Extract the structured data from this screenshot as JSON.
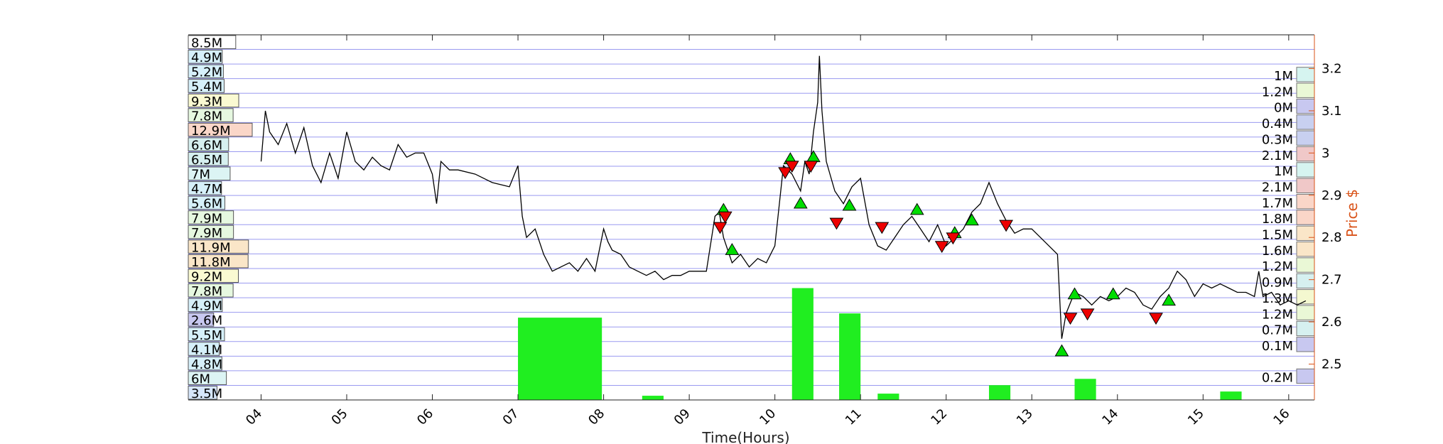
{
  "chart_data": {
    "type": "line",
    "xlabel": "Time(Hours)",
    "ylabel": "Price $",
    "xlim": [
      3.15,
      16.3
    ],
    "ylim": [
      2.415,
      3.28
    ],
    "x_ticks": [
      4,
      5,
      6,
      7,
      8,
      9,
      10,
      11,
      12,
      13,
      14,
      15,
      16
    ],
    "x_tick_labels": [
      "04",
      "05",
      "06",
      "07",
      "08",
      "09",
      "10",
      "11",
      "12",
      "13",
      "14",
      "15",
      "16"
    ],
    "y_ticks": [
      2.5,
      2.6,
      2.7,
      2.8,
      2.9,
      3.0,
      3.1,
      3.2
    ],
    "y_tick_labels": [
      "2.5",
      "2.6",
      "2.7",
      "2.8",
      "2.9",
      "3",
      "3.1",
      "3.2"
    ],
    "price_series": {
      "name": "",
      "x": [
        4.0,
        4.05,
        4.1,
        4.2,
        4.3,
        4.4,
        4.5,
        4.6,
        4.7,
        4.8,
        4.9,
        5.0,
        5.1,
        5.2,
        5.3,
        5.4,
        5.5,
        5.6,
        5.7,
        5.8,
        5.9,
        6.0,
        6.05,
        6.1,
        6.2,
        6.3,
        6.5,
        6.7,
        6.9,
        7.0,
        7.05,
        7.1,
        7.2,
        7.3,
        7.4,
        7.5,
        7.6,
        7.7,
        7.8,
        7.9,
        8.0,
        8.05,
        8.1,
        8.2,
        8.3,
        8.4,
        8.5,
        8.6,
        8.7,
        8.8,
        8.9,
        9.0,
        9.2,
        9.3,
        9.35,
        9.4,
        9.5,
        9.6,
        9.7,
        9.8,
        9.9,
        10.0,
        10.1,
        10.2,
        10.3,
        10.35,
        10.4,
        10.45,
        10.5,
        10.52,
        10.55,
        10.6,
        10.7,
        10.8,
        10.9,
        11.0,
        11.1,
        11.2,
        11.3,
        11.4,
        11.5,
        11.6,
        11.7,
        11.8,
        11.9,
        12.0,
        12.1,
        12.2,
        12.3,
        12.4,
        12.5,
        12.6,
        12.7,
        12.8,
        12.9,
        13.0,
        13.1,
        13.2,
        13.3,
        13.35,
        13.4,
        13.5,
        13.6,
        13.7,
        13.8,
        13.9,
        14.0,
        14.1,
        14.2,
        14.3,
        14.4,
        14.5,
        14.6,
        14.7,
        14.8,
        14.9,
        15.0,
        15.1,
        15.2,
        15.3,
        15.4,
        15.5,
        15.6,
        15.65,
        15.7,
        15.8,
        15.9,
        16.0,
        16.1,
        16.2
      ],
      "y": [
        2.98,
        3.1,
        3.05,
        3.02,
        3.07,
        3.0,
        3.06,
        2.97,
        2.93,
        3.0,
        2.94,
        3.05,
        2.98,
        2.96,
        2.99,
        2.97,
        2.96,
        3.02,
        2.99,
        3.0,
        3.0,
        2.95,
        2.88,
        2.98,
        2.96,
        2.96,
        2.95,
        2.93,
        2.92,
        2.97,
        2.85,
        2.8,
        2.82,
        2.76,
        2.72,
        2.73,
        2.74,
        2.72,
        2.75,
        2.72,
        2.82,
        2.79,
        2.77,
        2.76,
        2.73,
        2.72,
        2.71,
        2.72,
        2.7,
        2.71,
        2.71,
        2.72,
        2.72,
        2.85,
        2.86,
        2.8,
        2.74,
        2.76,
        2.73,
        2.75,
        2.74,
        2.78,
        2.97,
        2.95,
        2.91,
        2.98,
        2.95,
        3.05,
        3.12,
        3.23,
        3.1,
        2.98,
        2.91,
        2.88,
        2.92,
        2.94,
        2.83,
        2.78,
        2.77,
        2.8,
        2.83,
        2.85,
        2.82,
        2.79,
        2.83,
        2.78,
        2.8,
        2.82,
        2.86,
        2.88,
        2.93,
        2.88,
        2.84,
        2.81,
        2.82,
        2.82,
        2.8,
        2.78,
        2.76,
        2.56,
        2.62,
        2.67,
        2.66,
        2.64,
        2.66,
        2.65,
        2.66,
        2.68,
        2.67,
        2.64,
        2.63,
        2.66,
        2.68,
        2.72,
        2.7,
        2.66,
        2.69,
        2.68,
        2.69,
        2.68,
        2.67,
        2.67,
        2.66,
        2.72,
        2.66,
        2.67,
        2.64,
        2.65,
        2.64,
        2.65
      ]
    },
    "volume_bars": [
      {
        "from": 7.0,
        "to": 7.98,
        "top": 2.61,
        "color": "#20ee20"
      },
      {
        "from": 10.2,
        "to": 10.45,
        "top": 2.68,
        "color": "#20ee20"
      },
      {
        "from": 10.75,
        "to": 11.0,
        "top": 2.62,
        "color": "#20ee20"
      },
      {
        "from": 8.45,
        "to": 8.7,
        "top": 2.425,
        "color": "#20ee20"
      },
      {
        "from": 11.2,
        "to": 11.45,
        "top": 2.43,
        "color": "#20ee20"
      },
      {
        "from": 13.5,
        "to": 13.75,
        "top": 2.465,
        "color": "#20ee20"
      },
      {
        "from": 12.5,
        "to": 12.75,
        "top": 2.45,
        "color": "#20ee20"
      },
      {
        "from": 15.2,
        "to": 15.45,
        "top": 2.435,
        "color": "#20ee20"
      }
    ],
    "buy_markers": [
      {
        "x": 9.4,
        "y": 2.865
      },
      {
        "x": 9.5,
        "y": 2.77
      },
      {
        "x": 10.18,
        "y": 2.985
      },
      {
        "x": 10.3,
        "y": 2.88
      },
      {
        "x": 10.45,
        "y": 2.99
      },
      {
        "x": 10.87,
        "y": 2.875
      },
      {
        "x": 11.66,
        "y": 2.865
      },
      {
        "x": 12.1,
        "y": 2.81
      },
      {
        "x": 12.3,
        "y": 2.84
      },
      {
        "x": 13.35,
        "y": 2.53
      },
      {
        "x": 13.5,
        "y": 2.665
      },
      {
        "x": 13.95,
        "y": 2.665
      },
      {
        "x": 14.6,
        "y": 2.65
      }
    ],
    "sell_markers": [
      {
        "x": 9.36,
        "y": 2.825
      },
      {
        "x": 9.42,
        "y": 2.85
      },
      {
        "x": 10.12,
        "y": 2.955
      },
      {
        "x": 10.2,
        "y": 2.97
      },
      {
        "x": 10.42,
        "y": 2.97
      },
      {
        "x": 10.72,
        "y": 2.835
      },
      {
        "x": 11.25,
        "y": 2.825
      },
      {
        "x": 11.95,
        "y": 2.78
      },
      {
        "x": 12.08,
        "y": 2.8
      },
      {
        "x": 12.7,
        "y": 2.83
      },
      {
        "x": 13.45,
        "y": 2.61
      },
      {
        "x": 13.65,
        "y": 2.62
      },
      {
        "x": 14.45,
        "y": 2.61
      }
    ],
    "left_volume_profile": [
      {
        "label": "8.5M",
        "value": 8.5,
        "color": "#ffffff"
      },
      {
        "label": "4.9M",
        "value": 4.9,
        "color": "#d6f0fa"
      },
      {
        "label": "5.2M",
        "value": 5.2,
        "color": "#d6f0fa"
      },
      {
        "label": "5.4M",
        "value": 5.4,
        "color": "#d6f0fa"
      },
      {
        "label": "9.3M",
        "value": 9.3,
        "color": "#fafad2"
      },
      {
        "label": "7.8M",
        "value": 7.8,
        "color": "#e6f8e0"
      },
      {
        "label": "12.9M",
        "value": 12.9,
        "color": "#fad6c8"
      },
      {
        "label": "6.6M",
        "value": 6.6,
        "color": "#d6f0f0"
      },
      {
        "label": "6.5M",
        "value": 6.5,
        "color": "#d6f0f0"
      },
      {
        "label": "7M",
        "value": 7.0,
        "color": "#dcf4f4"
      },
      {
        "label": "4.7M",
        "value": 4.7,
        "color": "#d6f0fa"
      },
      {
        "label": "5.6M",
        "value": 5.6,
        "color": "#d6f0fa"
      },
      {
        "label": "7.9M",
        "value": 7.9,
        "color": "#e6f8e0"
      },
      {
        "label": "7.9M",
        "value": 7.9,
        "color": "#e6f8e0"
      },
      {
        "label": "11.9M",
        "value": 11.9,
        "color": "#fae6c8"
      },
      {
        "label": "11.8M",
        "value": 11.8,
        "color": "#fae6c8"
      },
      {
        "label": "9.2M",
        "value": 9.2,
        "color": "#fafad2"
      },
      {
        "label": "7.8M",
        "value": 7.8,
        "color": "#e6f8e0"
      },
      {
        "label": "4.9M",
        "value": 4.9,
        "color": "#d6f0fa"
      },
      {
        "label": "2.6M",
        "value": 2.6,
        "color": "#c8c8f0"
      },
      {
        "label": "5.5M",
        "value": 5.5,
        "color": "#d6f0fa"
      },
      {
        "label": "4.1M",
        "value": 4.1,
        "color": "#d6f0fa"
      },
      {
        "label": "4.8M",
        "value": 4.8,
        "color": "#d6f0fa"
      },
      {
        "label": "6M",
        "value": 6.0,
        "color": "#dcf4f4"
      },
      {
        "label": "3.5M",
        "value": 3.5,
        "color": "#d6e6fa"
      }
    ],
    "right_volume_profile": [
      {
        "label": "1M",
        "color": "#d6f4f0"
      },
      {
        "label": "1.2M",
        "color": "#eaf8d6"
      },
      {
        "label": "0M",
        "color": "#c8c8f0"
      },
      {
        "label": "0.4M",
        "color": "#c8d0f0"
      },
      {
        "label": "0.3M",
        "color": "#c8d0f0"
      },
      {
        "label": "2.1M",
        "color": "#f0c8c8"
      },
      {
        "label": "1M",
        "color": "#d6f4f0"
      },
      {
        "label": "2.1M",
        "color": "#f0c8c8"
      },
      {
        "label": "1.7M",
        "color": "#fad6c8"
      },
      {
        "label": "1.8M",
        "color": "#fad6c8"
      },
      {
        "label": "1.5M",
        "color": "#fae6c8"
      },
      {
        "label": "1.6M",
        "color": "#fae6c8"
      },
      {
        "label": "1.2M",
        "color": "#eaf8d6"
      },
      {
        "label": "0.9M",
        "color": "#d6f0f0"
      },
      {
        "label": "1.3M",
        "color": "#f4f8d0"
      },
      {
        "label": "1.2M",
        "color": "#eaf8d6"
      },
      {
        "label": "0.7M",
        "color": "#d6f0f0"
      },
      {
        "label": "0.1M",
        "color": "#c8c8f0"
      },
      {
        "label": "",
        "color": ""
      },
      {
        "label": "0.2M",
        "color": "#c8c8f0"
      }
    ],
    "grid": true,
    "colors": {
      "price": "#000000",
      "right_axis": "#d95319",
      "grid": "#9a9af0",
      "buy": "#00dd00",
      "sell": "#ee0000"
    }
  }
}
